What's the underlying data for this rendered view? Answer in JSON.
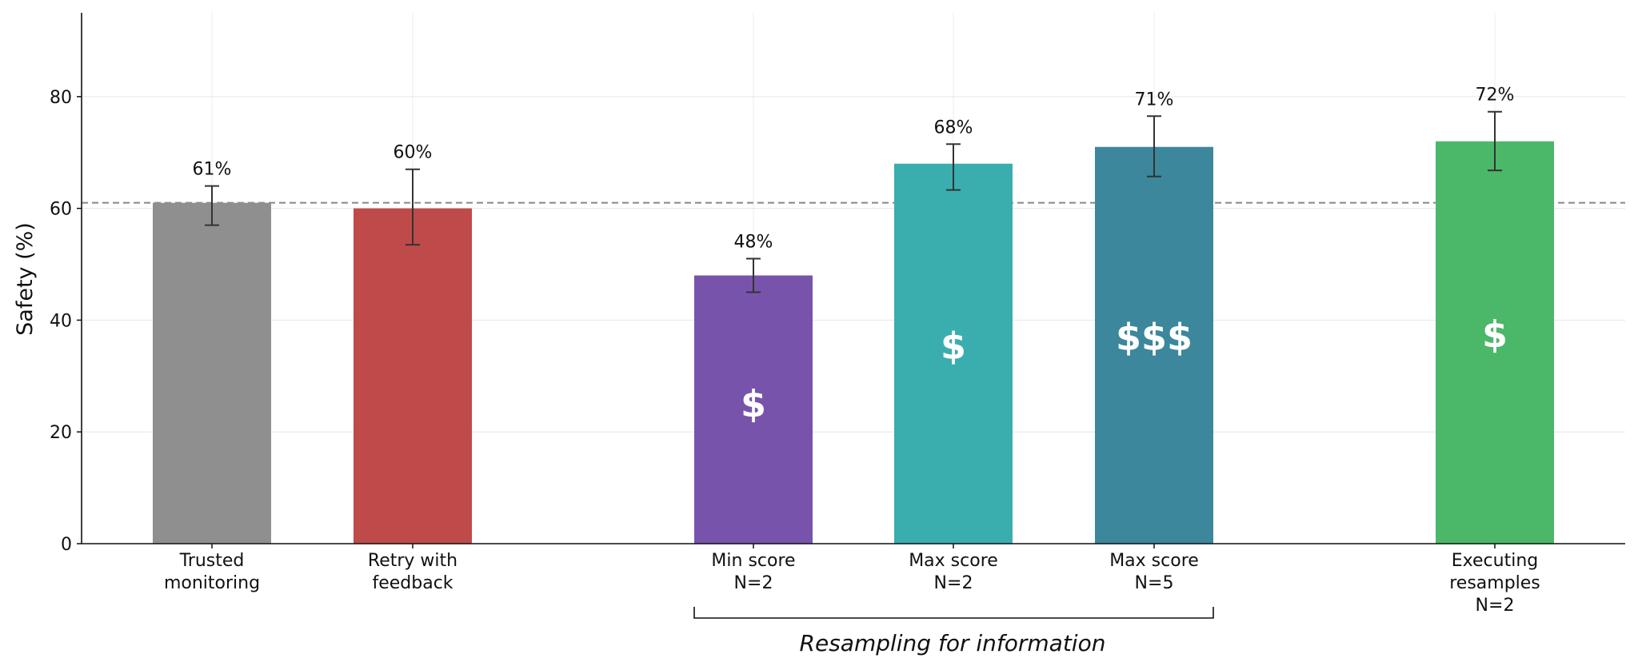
{
  "chart_data": {
    "type": "bar",
    "ylabel": "Safety (%)",
    "ylim": [
      0,
      95
    ],
    "yticks": [
      0,
      20,
      40,
      60,
      80
    ],
    "grid": true,
    "reference_line": 61,
    "bars": [
      {
        "label_lines": [
          "Trusted",
          "monitoring"
        ],
        "value": 61,
        "value_label": "61%",
        "err_low": 57,
        "err_high": 64,
        "color": "#8f8f8f",
        "cost": ""
      },
      {
        "label_lines": [
          "Retry with",
          "feedback"
        ],
        "value": 60,
        "value_label": "60%",
        "err_low": 53.5,
        "err_high": 67,
        "color": "#bf4a4a",
        "cost": ""
      },
      {
        "label_lines": [
          "Min score",
          "N=2"
        ],
        "value": 48,
        "value_label": "48%",
        "err_low": 45,
        "err_high": 51,
        "color": "#7853ab",
        "cost": "$"
      },
      {
        "label_lines": [
          "Max score",
          "N=2"
        ],
        "value": 68,
        "value_label": "68%",
        "err_low": 63.3,
        "err_high": 71.5,
        "color": "#3aaeae",
        "cost": "$"
      },
      {
        "label_lines": [
          "Max score",
          "N=5"
        ],
        "value": 71,
        "value_label": "71%",
        "err_low": 65.7,
        "err_high": 76.5,
        "color": "#3c879c",
        "cost": "$$$"
      },
      {
        "label_lines": [
          "Executing",
          "resamples",
          "N=2"
        ],
        "value": 72,
        "value_label": "72%",
        "err_low": 66.8,
        "err_high": 77.3,
        "color": "#4bb769",
        "cost": "$"
      }
    ],
    "group_annotation": "Resampling for information"
  }
}
